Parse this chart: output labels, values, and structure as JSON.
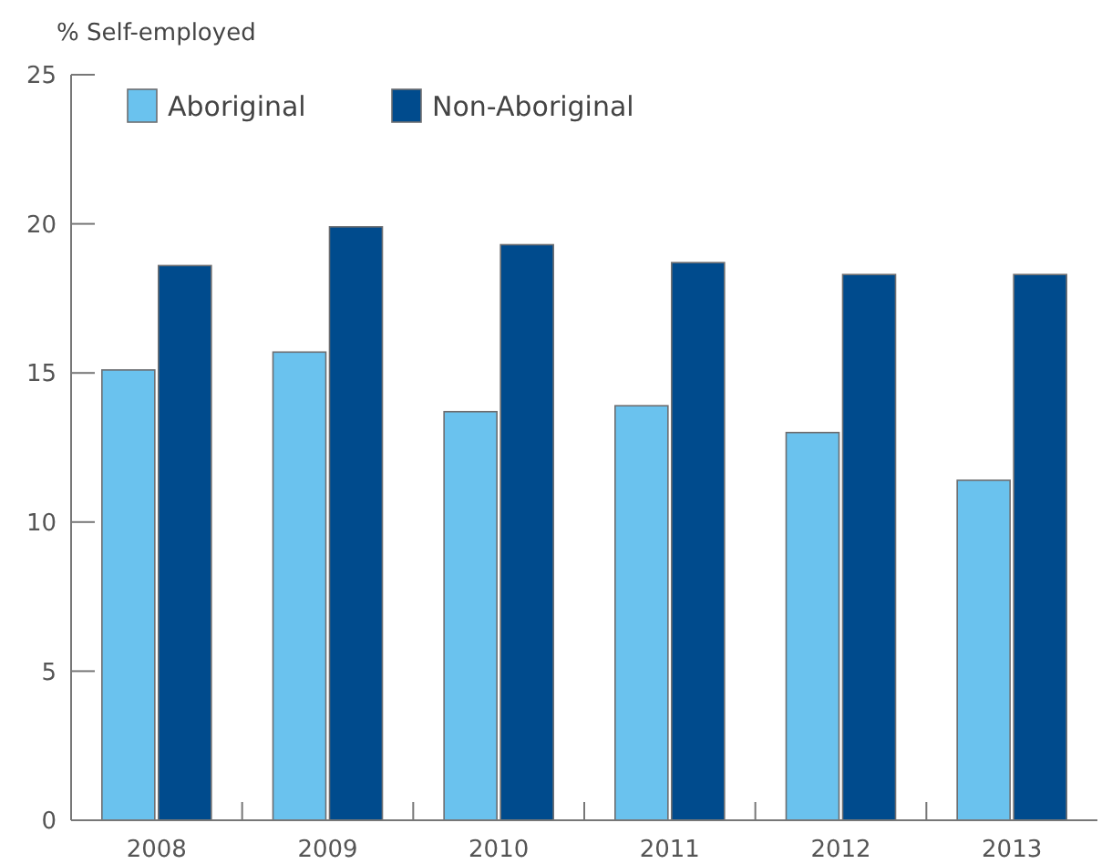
{
  "chart_data": {
    "type": "bar",
    "ylabel": "% Self-employed",
    "categories": [
      "2008",
      "2009",
      "2010",
      "2011",
      "2012",
      "2013"
    ],
    "series": [
      {
        "name": "Aboriginal",
        "color": "#6ac2ee",
        "values": [
          15.1,
          15.7,
          13.7,
          13.9,
          13.0,
          11.4
        ]
      },
      {
        "name": "Non-Aboriginal",
        "color": "#004b8d",
        "values": [
          18.6,
          19.9,
          19.3,
          18.7,
          18.3,
          18.3
        ]
      }
    ],
    "ylim": [
      0,
      25
    ],
    "yticks": [
      0,
      5,
      10,
      15,
      20,
      25
    ],
    "grid": false,
    "legend": "top left"
  }
}
